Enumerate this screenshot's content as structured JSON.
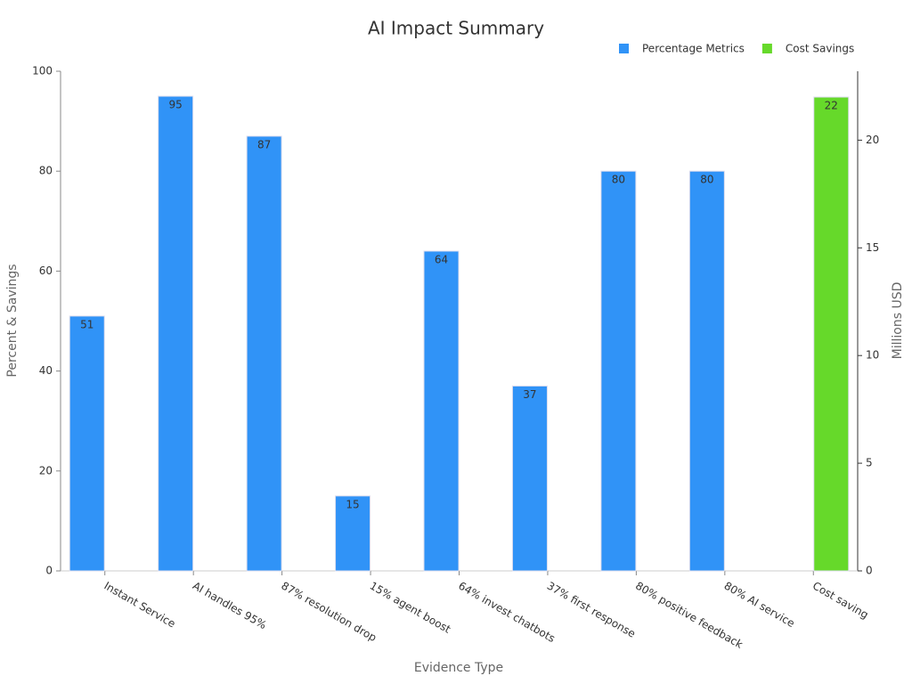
{
  "chart_data": {
    "type": "bar",
    "title": "AI Impact Summary",
    "x_label": "Evidence Type",
    "y_label": "Percent & Savings",
    "y2_label": "Millions USD",
    "categories": [
      "Instant Service",
      "AI handles 95%",
      "87% resolution drop",
      "15% agent boost",
      "64% invest chatbots",
      "37% first response",
      "80% positive feedback",
      "80% AI service",
      "Cost saving"
    ],
    "series": [
      {
        "name": "Percentage Metrics",
        "color": "#3093f7",
        "values": [
          51,
          95,
          87,
          15,
          64,
          37,
          80,
          80,
          null
        ]
      },
      {
        "name": "Cost Savings",
        "color": "#66d92a",
        "axis": "y2",
        "values": [
          null,
          null,
          null,
          null,
          null,
          null,
          null,
          null,
          22
        ]
      }
    ],
    "ylim": [
      0,
      100
    ],
    "yticks": [
      0,
      20,
      40,
      60,
      80,
      100
    ],
    "y2lim": [
      0,
      23.2
    ],
    "y2ticks": [
      0,
      5,
      10,
      15,
      20
    ],
    "legend": "top-right"
  }
}
